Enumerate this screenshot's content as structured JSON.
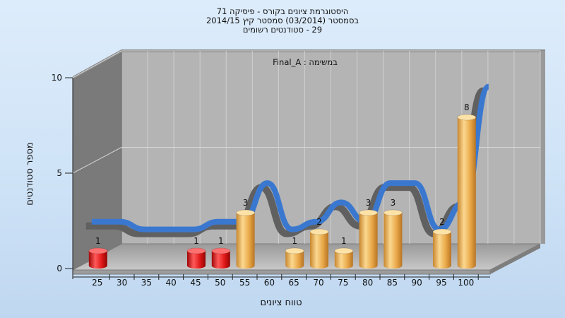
{
  "chart_data": {
    "type": "bar",
    "title_lines": [
      "היסטוגרמת ציונים בקורס - פיסיקה 71",
      "בסמסטר  (03/2014)  סמסטר קיץ  2014/15",
      "29 - סטודנטים רשומים"
    ],
    "task_label": "במשימה : Final_A",
    "xlabel": "טווח ציונים",
    "ylabel": "מספר סטודנטים",
    "ylim": [
      0,
      10
    ],
    "yticks": [
      0,
      5,
      10
    ],
    "categories": [
      "25",
      "30",
      "35",
      "40",
      "45",
      "50",
      "55",
      "60",
      "65",
      "70",
      "75",
      "80",
      "85",
      "90",
      "95",
      "100"
    ],
    "values": [
      1,
      0,
      0,
      0,
      1,
      1,
      3,
      0,
      1,
      2,
      1,
      3,
      3,
      0,
      2,
      8
    ],
    "fail_color": "#e01818",
    "pass_color": "#f0b050",
    "curve_color": "#3a78d0",
    "curve_shadow_color": "#606060",
    "grid": true,
    "style": "3d-cylinder"
  }
}
